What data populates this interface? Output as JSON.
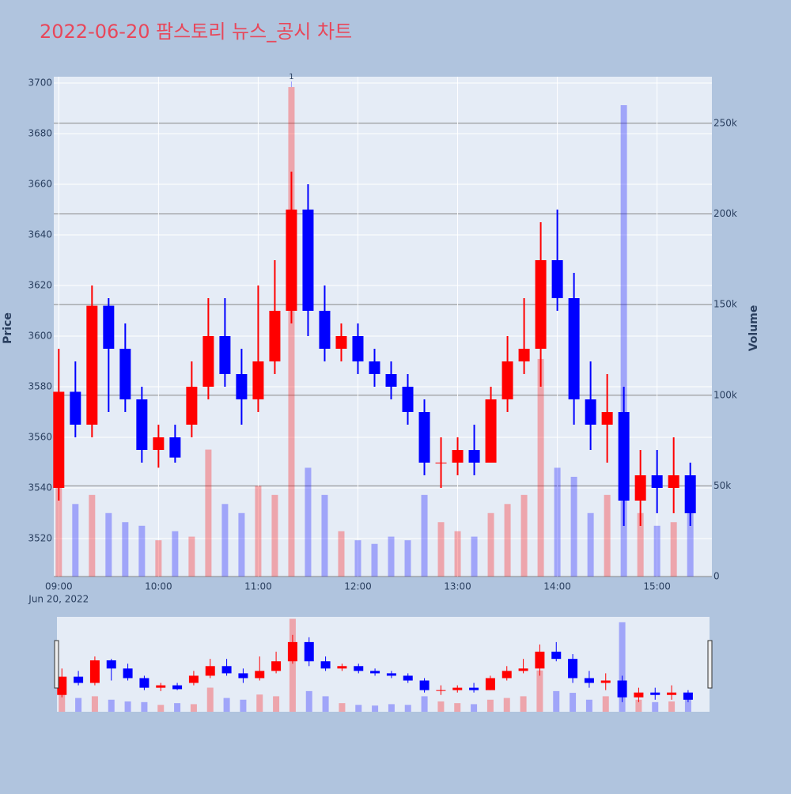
{
  "chart_data": {
    "type": "candlestick",
    "title": "2022-06-20 팜스토리 뉴스_공시 차트",
    "y_label": "Price",
    "y2_label": "Volume",
    "x": [
      "2022-06-20 09:00",
      "2022-06-20 09:10",
      "2022-06-20 09:20",
      "2022-06-20 09:30",
      "2022-06-20 09:40",
      "2022-06-20 09:50",
      "2022-06-20 10:00",
      "2022-06-20 10:10",
      "2022-06-20 10:20",
      "2022-06-20 10:30",
      "2022-06-20 10:40",
      "2022-06-20 10:50",
      "2022-06-20 11:00",
      "2022-06-20 11:10",
      "2022-06-20 11:20",
      "2022-06-20 11:30",
      "2022-06-20 11:40",
      "2022-06-20 11:50",
      "2022-06-20 12:00",
      "2022-06-20 12:10",
      "2022-06-20 12:20",
      "2022-06-20 12:30",
      "2022-06-20 12:40",
      "2022-06-20 12:50",
      "2022-06-20 13:00",
      "2022-06-20 13:10",
      "2022-06-20 13:20",
      "2022-06-20 13:30",
      "2022-06-20 13:40",
      "2022-06-20 13:50",
      "2022-06-20 14:00",
      "2022-06-20 14:10",
      "2022-06-20 14:20",
      "2022-06-20 14:30",
      "2022-06-20 14:40",
      "2022-06-20 14:50",
      "2022-06-20 15:00",
      "2022-06-20 15:10",
      "2022-06-20 15:20"
    ],
    "open": [
      3540,
      3578,
      3565,
      3612,
      3595,
      3575,
      3555,
      3560,
      3565,
      3580,
      3600,
      3585,
      3575,
      3590,
      3610,
      3650,
      3610,
      3595,
      3600,
      3590,
      3585,
      3580,
      3570,
      3550,
      3550,
      3555,
      3550,
      3575,
      3590,
      3595,
      3630,
      3615,
      3575,
      3565,
      3570,
      3535,
      3545,
      3540,
      3545
    ],
    "high": [
      3595,
      3590,
      3620,
      3615,
      3605,
      3580,
      3565,
      3565,
      3590,
      3615,
      3615,
      3595,
      3620,
      3630,
      3665,
      3660,
      3620,
      3605,
      3605,
      3595,
      3590,
      3585,
      3575,
      3560,
      3560,
      3565,
      3580,
      3600,
      3615,
      3645,
      3650,
      3625,
      3590,
      3585,
      3580,
      3555,
      3555,
      3560,
      3550
    ],
    "low": [
      3535,
      3560,
      3560,
      3570,
      3570,
      3550,
      3548,
      3550,
      3560,
      3575,
      3580,
      3565,
      3570,
      3585,
      3605,
      3600,
      3590,
      3590,
      3585,
      3580,
      3575,
      3565,
      3545,
      3540,
      3545,
      3545,
      3550,
      3570,
      3585,
      3580,
      3610,
      3565,
      3555,
      3550,
      3525,
      3525,
      3530,
      3530,
      3525
    ],
    "close": [
      3578,
      3565,
      3612,
      3595,
      3575,
      3555,
      3560,
      3552,
      3580,
      3600,
      3585,
      3575,
      3590,
      3610,
      3650,
      3610,
      3595,
      3600,
      3590,
      3585,
      3580,
      3570,
      3550,
      3550,
      3555,
      3550,
      3575,
      3590,
      3595,
      3630,
      3615,
      3575,
      3565,
      3570,
      3535,
      3545,
      3540,
      3545,
      3530
    ],
    "volume": [
      55000,
      40000,
      45000,
      35000,
      30000,
      28000,
      20000,
      25000,
      22000,
      70000,
      40000,
      35000,
      50000,
      45000,
      270000,
      60000,
      45000,
      25000,
      20000,
      18000,
      22000,
      20000,
      45000,
      30000,
      25000,
      22000,
      35000,
      40000,
      45000,
      120000,
      60000,
      55000,
      35000,
      45000,
      260000,
      35000,
      28000,
      30000,
      40000
    ],
    "increasing_color": "#ff0000",
    "decreasing_color": "#0000ff",
    "xlim": [
      "2022-06-20 08:57",
      "2022-06-20 15:33"
    ],
    "xticks": [
      {
        "value": "2022-06-20 09:00",
        "label": "09:00"
      },
      {
        "value": "2022-06-20 10:00",
        "label": "10:00"
      },
      {
        "value": "2022-06-20 11:00",
        "label": "11:00"
      },
      {
        "value": "2022-06-20 12:00",
        "label": "12:00"
      },
      {
        "value": "2022-06-20 13:00",
        "label": "13:00"
      },
      {
        "value": "2022-06-20 14:00",
        "label": "14:00"
      },
      {
        "value": "2022-06-20 15:00",
        "label": "15:00"
      }
    ],
    "x_date_label": "Jun 20, 2022",
    "ylim": [
      3505,
      3702.5
    ],
    "yticks": [
      3520,
      3540,
      3560,
      3580,
      3600,
      3620,
      3640,
      3660,
      3680,
      3700
    ],
    "y2lim": [
      0,
      275700
    ],
    "y2ticks": [
      0,
      {
        "value": 50000,
        "label": "50k"
      },
      {
        "value": 100000,
        "label": "100k"
      },
      {
        "value": 150000,
        "label": "150k"
      },
      {
        "value": 200000,
        "label": "200k"
      },
      {
        "value": 250000,
        "label": "250k"
      }
    ],
    "annotations": [
      {
        "x": "2022-06-20 11:20",
        "text": "1"
      }
    ],
    "grid": true,
    "range_slider": true
  }
}
